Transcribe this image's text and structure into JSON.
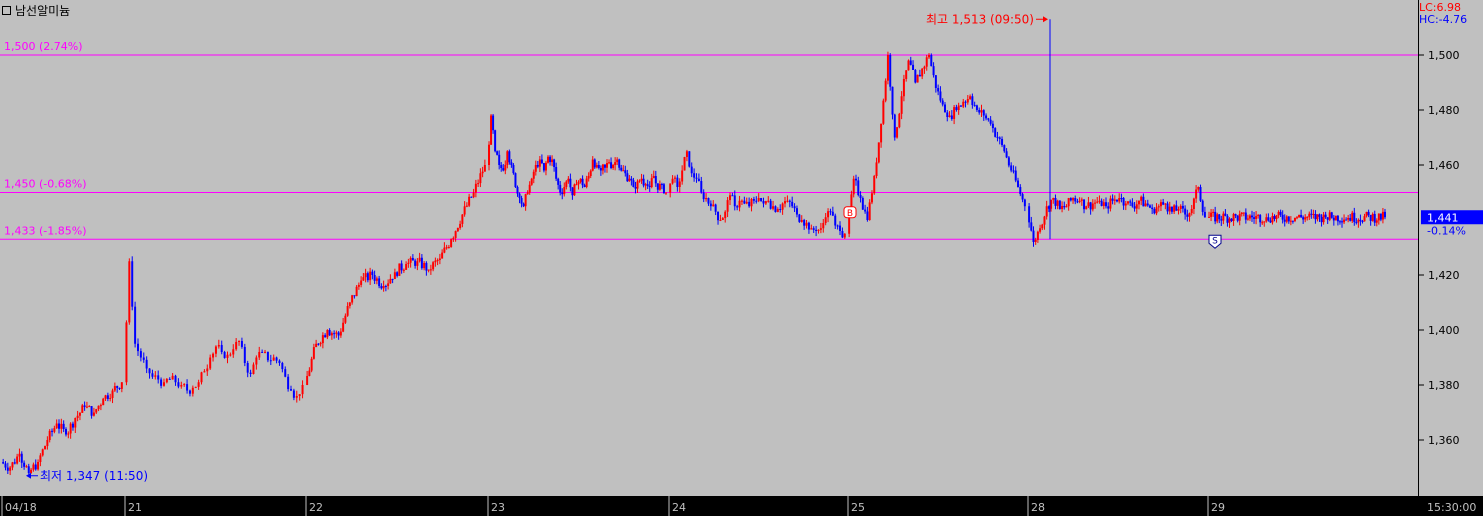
{
  "header": {
    "title": "남선알미늄",
    "lc": "LC:6.98",
    "hc": "HC:-4.76"
  },
  "colors": {
    "background": "#c0c0c0",
    "up": "#ff0000",
    "down": "#0000ff",
    "level_line": "#ff00ff",
    "frame": "#000000"
  },
  "chart_data": {
    "type": "candlestick",
    "ylim": [
      1340,
      1516
    ],
    "y_ticks": [
      "1,500",
      "1,480",
      "1,460",
      "1,420",
      "1,400",
      "1,380",
      "1,360"
    ],
    "x_tick_labels": [
      "04/18",
      "21",
      "22",
      "23",
      "24",
      "25",
      "28",
      "29",
      "15:30:00"
    ],
    "reference_lines": [
      {
        "value": 1500,
        "label": "1,500 (2.74%)"
      },
      {
        "value": 1450,
        "label": "1,450 (-0.68%)"
      },
      {
        "value": 1433,
        "label": "1,433 (-1.85%)"
      }
    ],
    "annotations": {
      "high": {
        "label": "최고 1,513 (09:50)",
        "value": 1513
      },
      "low": {
        "label": "최저 1,347 (11:50)",
        "value": 1347
      },
      "buy_marker": "B",
      "sell_marker": "S"
    },
    "current_price": {
      "value": "1,441",
      "change": "-0.14%"
    },
    "sessions": [
      {
        "day": "04/18",
        "points": [
          1352,
          1350,
          1355,
          1348,
          1352,
          1360,
          1366,
          1362,
          1368,
          1372,
          1370,
          1375,
          1378,
          1381
        ]
      },
      {
        "day": "21",
        "points": [
          1381,
          1425,
          1395,
          1390,
          1386,
          1383,
          1382,
          1381,
          1382,
          1381,
          1380,
          1378,
          1379,
          1381,
          1385,
          1390,
          1394,
          1392,
          1391,
          1393,
          1396,
          1388,
          1384,
          1390,
          1392,
          1389,
          1390,
          1388,
          1383,
          1378,
          1376,
          1380
        ]
      },
      {
        "day": "22",
        "points": [
          1380,
          1395,
          1400,
          1398,
          1410,
          1418,
          1420,
          1416,
          1421,
          1424,
          1425,
          1422,
          1426,
          1433,
          1442,
          1450,
          1460
        ]
      },
      {
        "day": "23",
        "points": [
          1460,
          1478,
          1465,
          1460,
          1458,
          1465,
          1460,
          1452,
          1448,
          1445,
          1450,
          1455,
          1460,
          1462,
          1458,
          1463,
          1462,
          1455,
          1450,
          1452,
          1455,
          1449,
          1453,
          1455,
          1452,
          1456,
          1462,
          1460,
          1458,
          1459,
          1461,
          1460,
          1462,
          1458,
          1457,
          1455,
          1452,
          1454,
          1455,
          1453,
          1452,
          1456,
          1451,
          1453,
          1450
        ]
      },
      {
        "day": "24",
        "points": [
          1450,
          1455,
          1452,
          1458,
          1465,
          1457,
          1455,
          1450,
          1448,
          1445,
          1443,
          1440,
          1443,
          1449,
          1445,
          1447,
          1446,
          1445,
          1447,
          1448,
          1446,
          1447,
          1445,
          1444,
          1446,
          1447,
          1445,
          1442,
          1440,
          1439,
          1437,
          1436,
          1437,
          1441,
          1443,
          1438,
          1436,
          1435
        ]
      },
      {
        "day": "25",
        "points": [
          1435,
          1455,
          1448,
          1440,
          1456,
          1475,
          1500,
          1470,
          1485,
          1498,
          1490,
          1495,
          1500,
          1488,
          1482,
          1478,
          1480,
          1483,
          1485,
          1480,
          1478,
          1475,
          1470,
          1465,
          1458,
          1452,
          1445
        ]
      },
      {
        "day": "28",
        "points": [
          1445,
          1432,
          1437,
          1445,
          1448,
          1444,
          1445,
          1448,
          1447,
          1445,
          1446,
          1447,
          1445,
          1447,
          1448,
          1446,
          1445,
          1447,
          1446,
          1444,
          1445,
          1446,
          1443,
          1444,
          1442,
          1444,
          1452,
          1441
        ]
      },
      {
        "day": "29",
        "points": [
          1441,
          1441,
          1441,
          1441
        ]
      }
    ]
  }
}
